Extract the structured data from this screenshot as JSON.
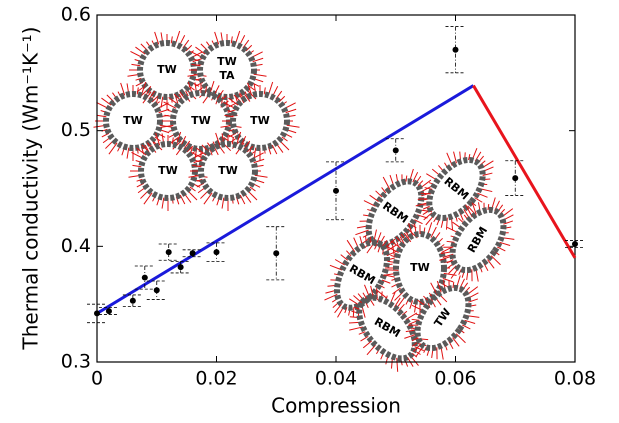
{
  "chart_data": {
    "type": "scatter",
    "xlabel": "Compression",
    "ylabel": "Thermal conductivity (Wm⁻¹K⁻¹)",
    "xlim": [
      0,
      0.08
    ],
    "ylim": [
      0.3,
      0.6
    ],
    "xticks": [
      0,
      0.02,
      0.04,
      0.06,
      0.08
    ],
    "yticks": [
      0.3,
      0.4,
      0.5,
      0.6
    ],
    "series": [
      {
        "type": "scatter",
        "color": "#000000",
        "x": [
          0,
          0.002,
          0.006,
          0.008,
          0.01,
          0.012,
          0.014,
          0.016,
          0.02,
          0.03,
          0.04,
          0.05,
          0.06,
          0.07,
          0.08
        ],
        "values": [
          0.342,
          0.344,
          0.353,
          0.373,
          0.362,
          0.395,
          0.382,
          0.394,
          0.395,
          0.394,
          0.448,
          0.483,
          0.57,
          0.459,
          0.402
        ],
        "errors": [
          0.008,
          0.003,
          0.005,
          0.01,
          0.008,
          0.007,
          0.005,
          0.003,
          0.008,
          0.023,
          0.025,
          0.01,
          0.02,
          0.015,
          0.003
        ]
      },
      {
        "type": "line",
        "color": "#1a1adb",
        "x": [
          0,
          0.063
        ],
        "values": [
          0.342,
          0.539
        ]
      },
      {
        "type": "line",
        "color": "#e8141c",
        "x": [
          0.063,
          0.08
        ],
        "values": [
          0.539,
          0.39
        ]
      }
    ],
    "annotations": [
      "TW",
      "TW",
      "TA",
      "TW",
      "TW",
      "TW",
      "TW",
      "TW",
      "RBM",
      "RBM",
      "RBM",
      "TW",
      "RBM",
      "RBM",
      "TW"
    ]
  }
}
